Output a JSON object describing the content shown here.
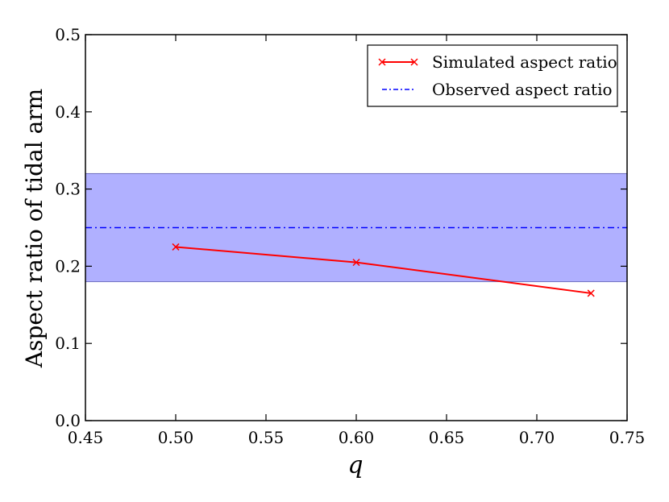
{
  "chart_data": {
    "type": "line",
    "xlabel": "q",
    "ylabel": "Aspect ratio of tidal arm",
    "xlim": [
      0.45,
      0.75
    ],
    "ylim": [
      0.0,
      0.5
    ],
    "xticks": [
      "0.45",
      "0.50",
      "0.55",
      "0.60",
      "0.65",
      "0.70",
      "0.75"
    ],
    "yticks": [
      "0.0",
      "0.1",
      "0.2",
      "0.3",
      "0.4",
      "0.5"
    ],
    "grid": false,
    "legend_position": "top-right",
    "series": [
      {
        "name": "Simulated aspect ratio",
        "color": "#ff0000",
        "marker": "x",
        "line_style": "solid",
        "x": [
          0.5,
          0.6,
          0.73
        ],
        "y": [
          0.225,
          0.205,
          0.165
        ]
      }
    ],
    "reference": {
      "name": "Observed aspect ratio",
      "color": "#0000ff",
      "line_style": "dash-dot",
      "y": 0.25,
      "band": [
        0.18,
        0.32
      ],
      "band_color": "#b0b0ff"
    }
  }
}
